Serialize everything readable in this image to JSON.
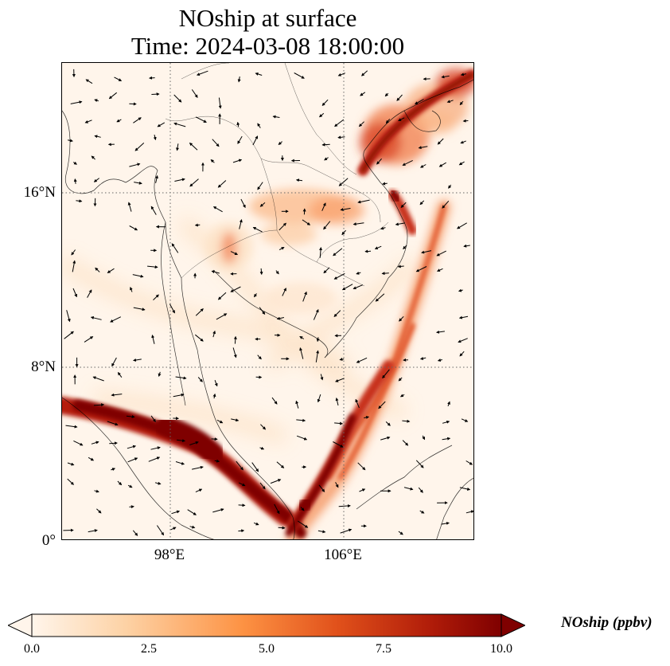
{
  "title": {
    "line1": "NOship at surface",
    "line2": "Time: 2024-03-08 18:00:00"
  },
  "map": {
    "lon_range": [
      93,
      112
    ],
    "lat_range": [
      0,
      22
    ],
    "latitude_labels": [
      {
        "lat": 16,
        "label": "16°N"
      },
      {
        "lat": 8,
        "label": "8°N"
      },
      {
        "lat": 0,
        "label": "0°"
      }
    ],
    "longitude_labels": [
      {
        "lon": 98,
        "label": "98°E"
      },
      {
        "lon": 106,
        "label": "106°E"
      }
    ],
    "gridlines": "dotted",
    "wind_vectors": "shown"
  },
  "colorbar": {
    "label": "NOship (ppbv)",
    "min": 0,
    "max": 10,
    "extend": "both",
    "ticks": [
      "0.0",
      "2.5",
      "5.0",
      "7.5",
      "10.0"
    ],
    "colormap": [
      "#fff5eb",
      "#fdd2a5",
      "#fd9243",
      "#e1511b",
      "#b01c09",
      "#7f0000"
    ]
  }
}
